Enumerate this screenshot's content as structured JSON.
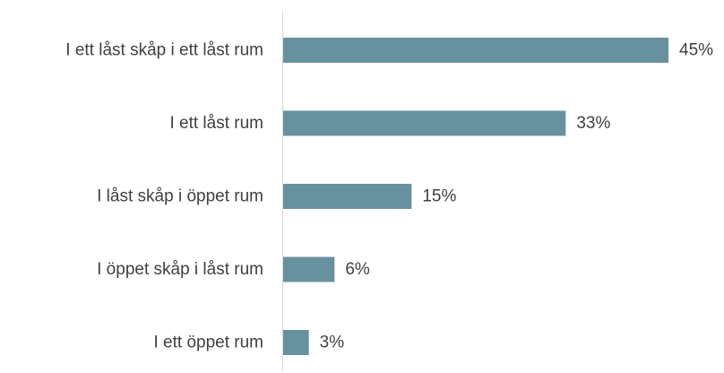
{
  "chart_data": {
    "type": "bar",
    "orientation": "horizontal",
    "categories": [
      "I ett låst skåp i ett låst rum",
      "I ett låst rum",
      "I låst skåp i öppet rum",
      "I öppet skåp i låst rum",
      "I ett öppet rum"
    ],
    "values": [
      45,
      33,
      15,
      6,
      3
    ],
    "value_labels": [
      "45%",
      "33%",
      "15%",
      "6%",
      "3%"
    ],
    "xlim": [
      0,
      45
    ],
    "grid": false,
    "legend": "none",
    "colors": {
      "bar": "#6891a0",
      "axis": "#d9d9d9",
      "text": "#404040"
    }
  }
}
